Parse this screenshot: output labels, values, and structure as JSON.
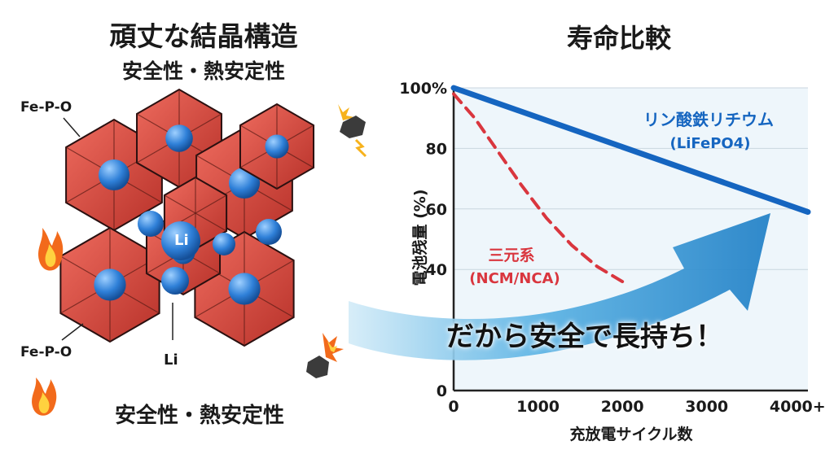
{
  "left_panel": {
    "title": "頑丈な結晶構造",
    "subtitle": "安全性・熱安定性",
    "bottom_caption": "安全性・熱安定性",
    "labels": {
      "fe_p_o_top": "Fe-P-O",
      "fe_p_o_bottom": "Fe-P-O",
      "li_center": "Li",
      "li_bottom": "Li"
    }
  },
  "right_panel": {
    "title": "寿命比較",
    "banner": "だから安全で長持ち！"
  },
  "colors": {
    "lfp_line": "#1565c0",
    "ncm_line": "#d9363e",
    "crystal": "#d9463b",
    "li_ion": "#2f80d8",
    "chart_bg": "#eef6fb",
    "arrow": "#2a8fd0"
  },
  "chart_data": {
    "type": "line",
    "xlabel": "充放電サイクル数",
    "ylabel": "電池残量 (%)",
    "xlim": [
      0,
      4200
    ],
    "ylim": [
      0,
      100
    ],
    "x_ticks": [
      "0",
      "1000",
      "2000",
      "3000",
      "4000+"
    ],
    "y_ticks": [
      "0",
      "40",
      "60",
      "80",
      "100%"
    ],
    "grid": true,
    "series": [
      {
        "name": "リン酸鉄リチウム",
        "name2": "(LiFePO4)",
        "style": "solid",
        "x": [
          0,
          4200
        ],
        "y": [
          100,
          59
        ]
      },
      {
        "name": "三元系",
        "name2": "(NCM/NCA)",
        "style": "dashed",
        "x": [
          0,
          250,
          500,
          800,
          1100,
          1400,
          1700,
          2000
        ],
        "y": [
          98,
          90,
          80,
          68,
          57,
          48,
          41,
          36
        ]
      }
    ]
  }
}
